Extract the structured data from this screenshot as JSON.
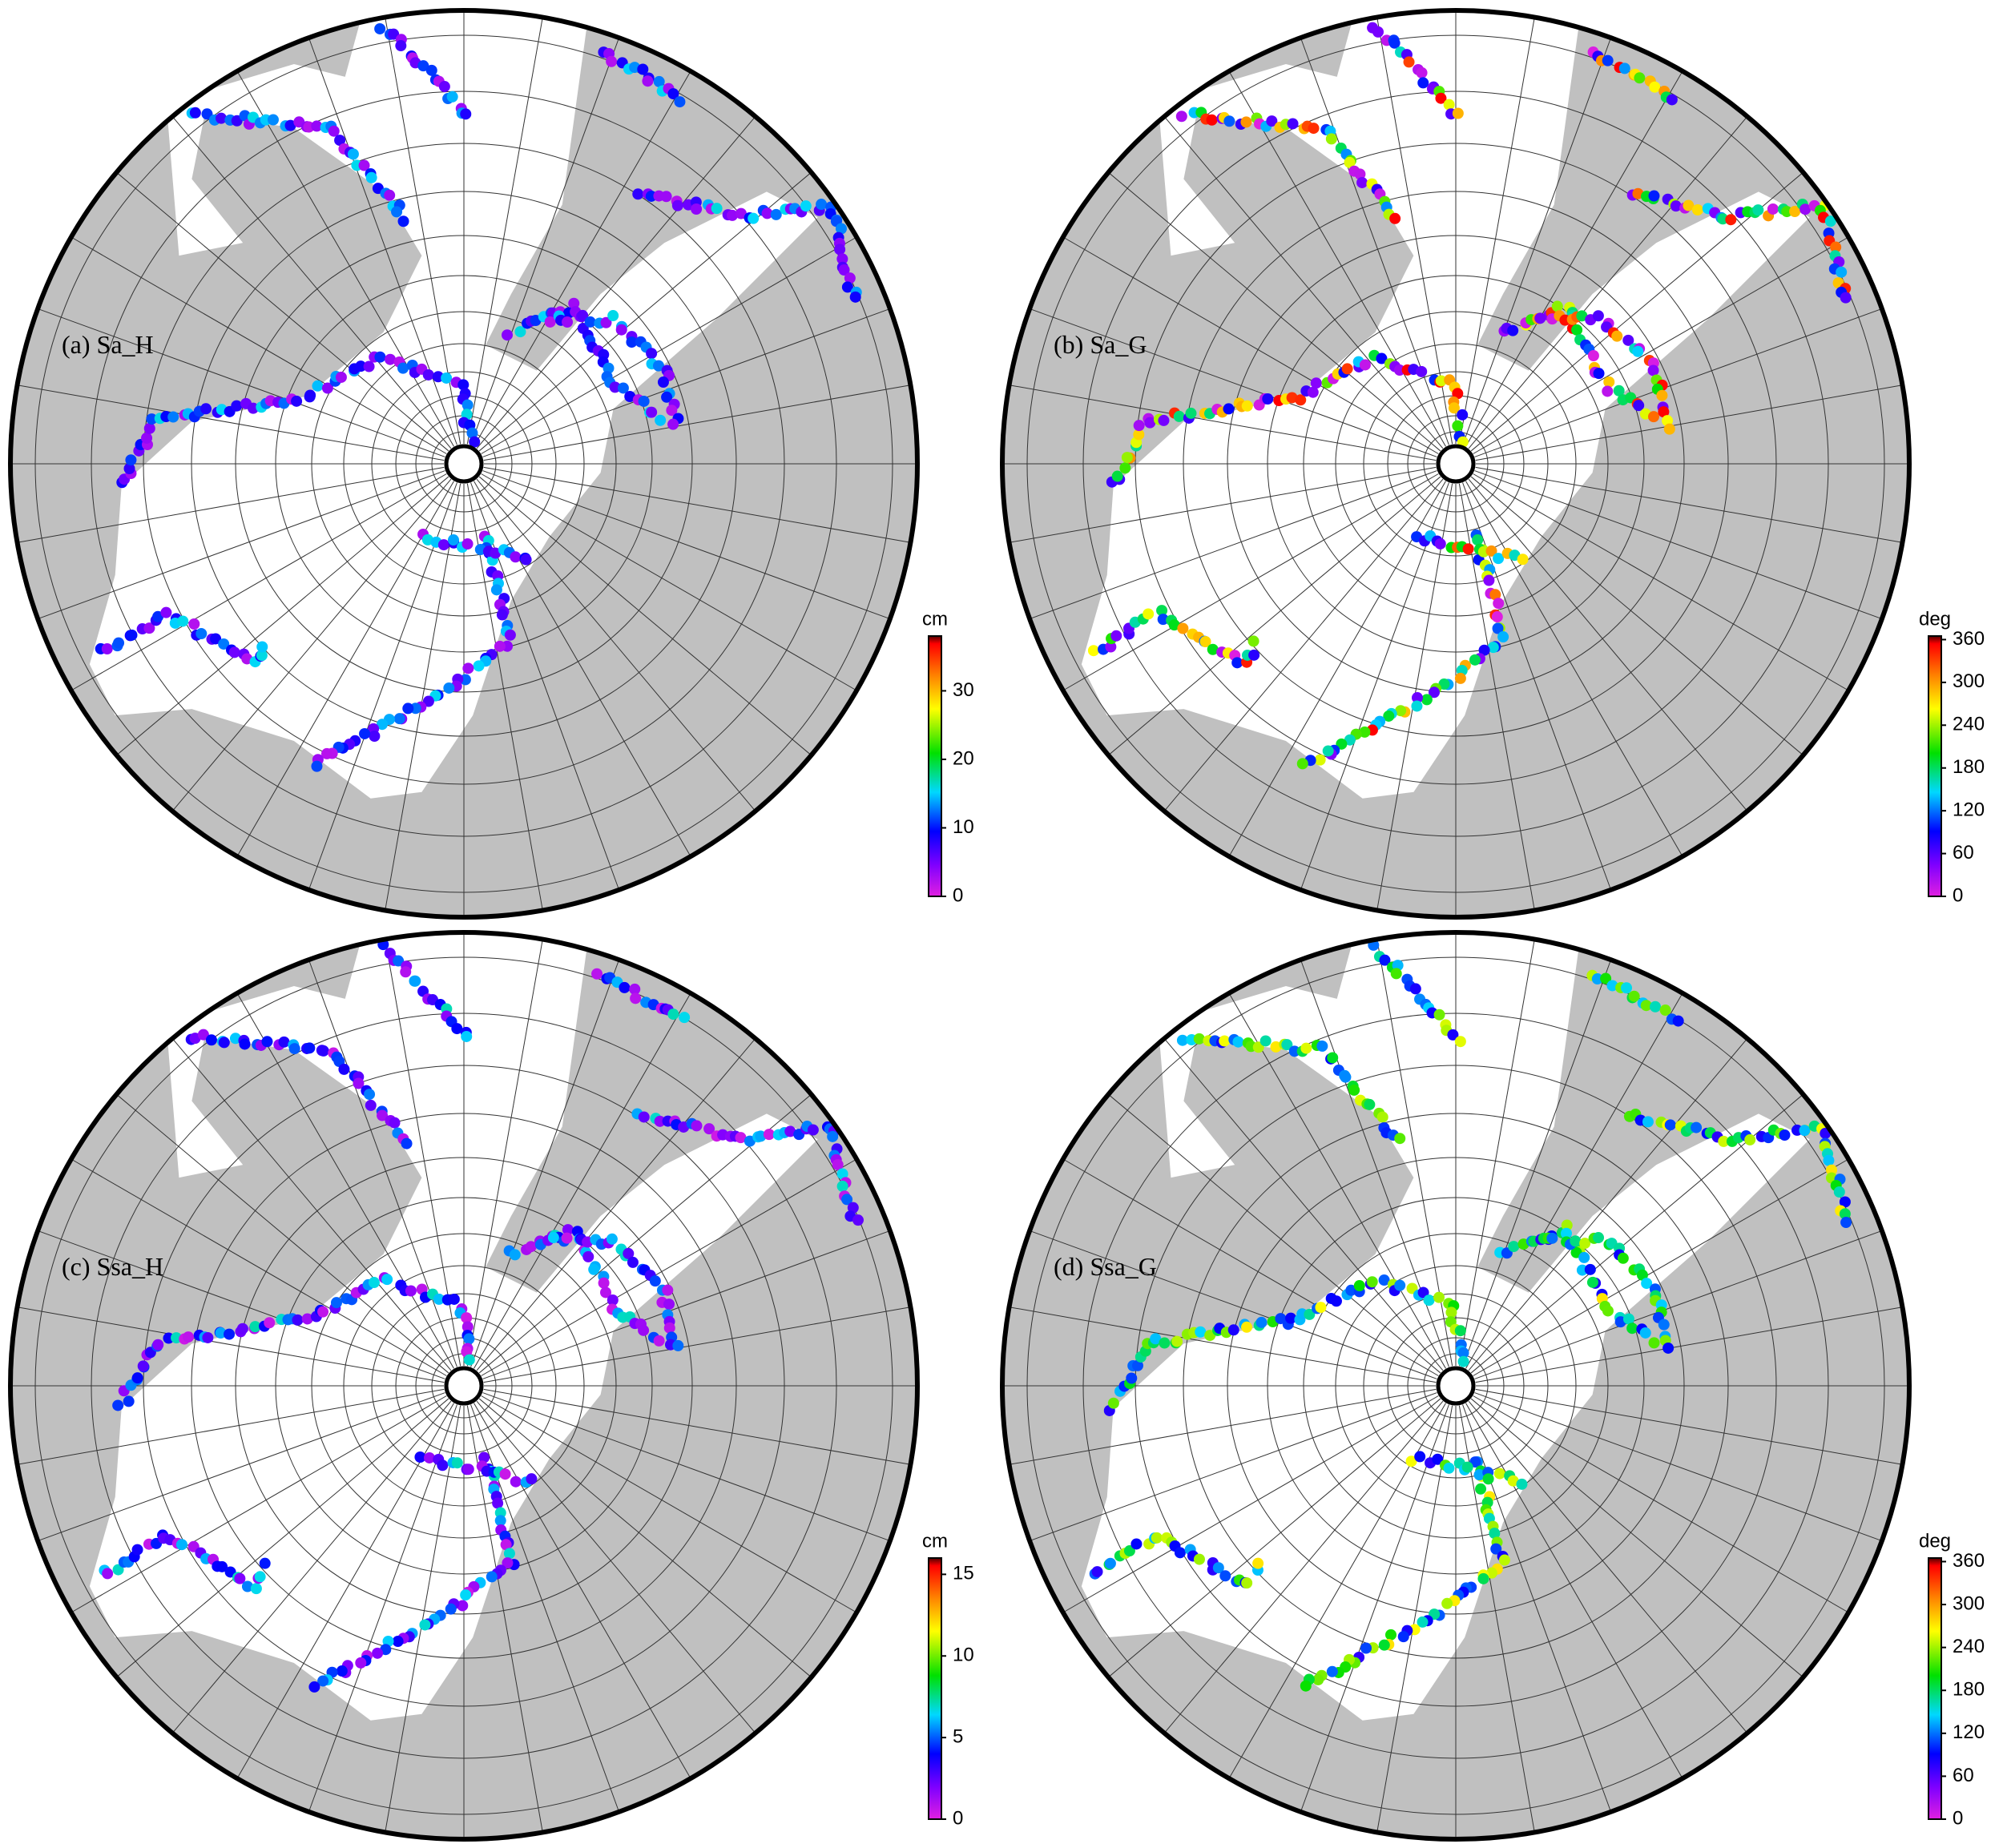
{
  "panels": [
    {
      "label": "(a) Sa_H",
      "colorbar": {
        "unit": "cm",
        "lim": [
          0,
          38
        ],
        "ticks": [
          0,
          10,
          20,
          30
        ]
      }
    },
    {
      "label": "(b) Sa_G",
      "colorbar": {
        "unit": "deg",
        "lim": [
          0,
          365
        ],
        "ticks": [
          0,
          60,
          120,
          180,
          240,
          300,
          360
        ]
      }
    },
    {
      "label": "(c) Ssa_H",
      "colorbar": {
        "unit": "cm",
        "lim": [
          0,
          16
        ],
        "ticks": [
          0,
          5,
          10,
          15
        ]
      }
    },
    {
      "label": "(d) Ssa_G",
      "colorbar": {
        "unit": "deg",
        "lim": [
          0,
          365
        ],
        "ticks": [
          0,
          60,
          120,
          180,
          240,
          300,
          360
        ]
      }
    }
  ]
}
